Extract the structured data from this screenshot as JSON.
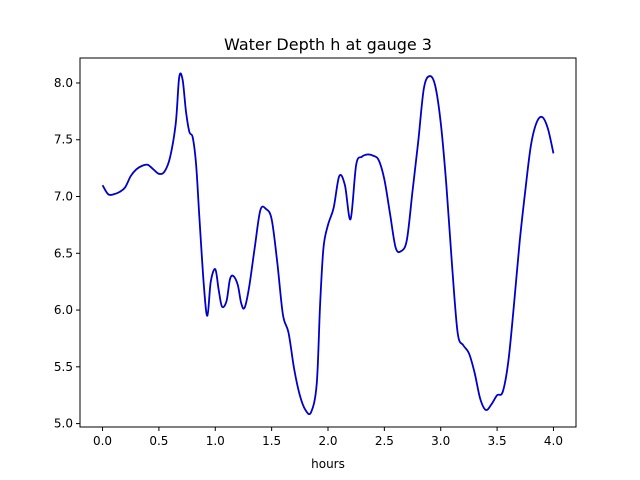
{
  "chart_data": {
    "type": "line",
    "title": "Water Depth h at gauge 3",
    "xlabel": "hours",
    "ylabel": "",
    "xlim": [
      -0.2,
      4.2
    ],
    "ylim": [
      4.97,
      8.22
    ],
    "grid": false,
    "line_color": "#0000cc",
    "x_ticks": [
      {
        "value": 0.0,
        "label": "0.0"
      },
      {
        "value": 0.5,
        "label": "0.5"
      },
      {
        "value": 1.0,
        "label": "1.0"
      },
      {
        "value": 1.5,
        "label": "1.5"
      },
      {
        "value": 2.0,
        "label": "2.0"
      },
      {
        "value": 2.5,
        "label": "2.5"
      },
      {
        "value": 3.0,
        "label": "3.0"
      },
      {
        "value": 3.5,
        "label": "3.5"
      },
      {
        "value": 4.0,
        "label": "4.0"
      }
    ],
    "y_ticks": [
      {
        "value": 5.0,
        "label": "5.0"
      },
      {
        "value": 5.5,
        "label": "5.5"
      },
      {
        "value": 6.0,
        "label": "6.0"
      },
      {
        "value": 6.5,
        "label": "6.5"
      },
      {
        "value": 7.0,
        "label": "7.0"
      },
      {
        "value": 7.5,
        "label": "7.5"
      },
      {
        "value": 8.0,
        "label": "8.0"
      }
    ],
    "x": [
      0.0,
      0.05,
      0.1,
      0.15,
      0.2,
      0.25,
      0.3,
      0.35,
      0.4,
      0.45,
      0.5,
      0.55,
      0.6,
      0.65,
      0.68,
      0.71,
      0.74,
      0.77,
      0.8,
      0.83,
      0.86,
      0.9,
      0.93,
      0.96,
      1.0,
      1.03,
      1.06,
      1.1,
      1.13,
      1.16,
      1.2,
      1.23,
      1.26,
      1.3,
      1.35,
      1.4,
      1.45,
      1.5,
      1.55,
      1.6,
      1.65,
      1.7,
      1.75,
      1.8,
      1.85,
      1.9,
      1.93,
      1.96,
      2.0,
      2.05,
      2.1,
      2.15,
      2.2,
      2.25,
      2.3,
      2.35,
      2.4,
      2.45,
      2.5,
      2.55,
      2.6,
      2.65,
      2.7,
      2.75,
      2.8,
      2.85,
      2.9,
      2.95,
      3.0,
      3.05,
      3.1,
      3.15,
      3.2,
      3.25,
      3.3,
      3.35,
      3.4,
      3.45,
      3.5,
      3.55,
      3.6,
      3.65,
      3.7,
      3.75,
      3.8,
      3.85,
      3.9,
      3.95,
      4.0
    ],
    "y": [
      7.1,
      7.02,
      7.02,
      7.04,
      7.08,
      7.18,
      7.24,
      7.27,
      7.28,
      7.24,
      7.2,
      7.22,
      7.35,
      7.65,
      8.05,
      8.03,
      7.75,
      7.57,
      7.52,
      7.28,
      6.8,
      6.2,
      5.95,
      6.25,
      6.36,
      6.18,
      6.03,
      6.08,
      6.27,
      6.3,
      6.22,
      6.06,
      6.02,
      6.2,
      6.55,
      6.88,
      6.89,
      6.8,
      6.42,
      5.96,
      5.8,
      5.48,
      5.25,
      5.12,
      5.1,
      5.35,
      6.05,
      6.55,
      6.75,
      6.9,
      7.18,
      7.1,
      6.8,
      7.28,
      7.35,
      7.37,
      7.36,
      7.32,
      7.15,
      6.85,
      6.55,
      6.52,
      6.62,
      7.05,
      7.48,
      7.95,
      8.06,
      7.98,
      7.65,
      7.1,
      6.4,
      5.8,
      5.69,
      5.62,
      5.45,
      5.22,
      5.12,
      5.17,
      5.25,
      5.28,
      5.55,
      6.05,
      6.6,
      7.05,
      7.45,
      7.65,
      7.7,
      7.6,
      7.38
    ]
  }
}
